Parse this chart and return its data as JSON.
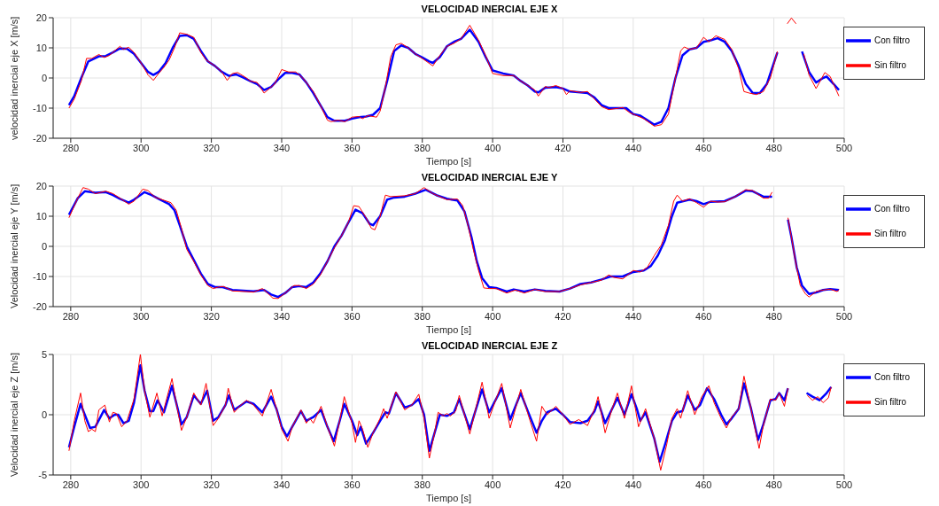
{
  "chart_data": [
    {
      "type": "line",
      "title": "VELOCIDAD INERCIAL EJE X",
      "xlabel": "Tiempo [s]",
      "ylabel": "velocidad inercial eje X [m/s]",
      "xlim": [
        275,
        500
      ],
      "xticks": [
        280,
        300,
        320,
        340,
        360,
        380,
        400,
        420,
        440,
        460,
        480,
        500
      ],
      "ylim": [
        -20,
        20
      ],
      "yticks": [
        -20,
        -10,
        0,
        10,
        20
      ],
      "grid": true,
      "legend": "top right",
      "series": [
        {
          "name": "Con filtro",
          "color": "#0000ff",
          "x": [
            279.5,
            281,
            283,
            285,
            288,
            290,
            292,
            294,
            296,
            298,
            300,
            302,
            303.5,
            305,
            307,
            309,
            311,
            313,
            315,
            317,
            319,
            321,
            323,
            325,
            327,
            329,
            331,
            333,
            335,
            337,
            339,
            341,
            343,
            345,
            347,
            349,
            351,
            353,
            355,
            358,
            360,
            362,
            364,
            366,
            368,
            370,
            372,
            374,
            376,
            378,
            380,
            382,
            383,
            385,
            387,
            389,
            391,
            393.5,
            396,
            398,
            400,
            403,
            406,
            408,
            410,
            412,
            413,
            415,
            418,
            420,
            422,
            425,
            427,
            429,
            431,
            433,
            436,
            438,
            440,
            442,
            444,
            446,
            448,
            450,
            452,
            454,
            456,
            458,
            460,
            462,
            464,
            466,
            468,
            470,
            472,
            474,
            476,
            478,
            480,
            481,
            484,
            488,
            490,
            492,
            494,
            495,
            497,
            498.5
          ],
          "values": [
            -9,
            -6,
            0,
            5.5,
            7.2,
            7.3,
            8.5,
            9.8,
            9.7,
            8,
            5,
            2,
            1,
            2,
            5,
            10,
            14,
            14.2,
            13,
            9,
            5.5,
            4,
            2,
            0.7,
            1.2,
            0.2,
            -1,
            -2,
            -4,
            -3,
            -0.5,
            1.7,
            1.7,
            1.2,
            -1.5,
            -5,
            -9,
            -13,
            -14.2,
            -14.2,
            -13.5,
            -13,
            -12.8,
            -12.2,
            -10,
            -1,
            9,
            10.8,
            10,
            8,
            6.8,
            5.5,
            5,
            7,
            10.5,
            12,
            13,
            16,
            12,
            7,
            2.5,
            1.5,
            0.8,
            -1,
            -2.5,
            -4.5,
            -4.8,
            -3.2,
            -3,
            -3.5,
            -4.5,
            -4.8,
            -5,
            -6.5,
            -9,
            -10,
            -10,
            -10,
            -12,
            -12.5,
            -14,
            -15.5,
            -14.5,
            -10,
            0,
            7.5,
            9.5,
            10,
            12,
            12.5,
            13.2,
            12,
            9,
            4,
            -2,
            -5,
            -5,
            -2,
            5,
            8.5,
            null,
            8.8,
            2,
            -1.5,
            0,
            0.5,
            -2,
            -4
          ]
        },
        {
          "name": "Sin filtro",
          "color": "#ff0000",
          "x": [
            279.5,
            281,
            283,
            284.5,
            286,
            288,
            289.5,
            291,
            294,
            295,
            296.5,
            298,
            300,
            302,
            303.5,
            305,
            306.5,
            308,
            309.5,
            311,
            313,
            315,
            317,
            318.5,
            321,
            323,
            324.5,
            326,
            327.5,
            330,
            331,
            333,
            335,
            336.5,
            338,
            340,
            342,
            344,
            346,
            349,
            351,
            353,
            354,
            356,
            358,
            360,
            362,
            363,
            364.5,
            367,
            368,
            369.5,
            371,
            372.5,
            374,
            376,
            378,
            380,
            383,
            385,
            387,
            389,
            391,
            393.5,
            396,
            398,
            400,
            403,
            406,
            408,
            410,
            412,
            413,
            415,
            416,
            418,
            420,
            421,
            422,
            425,
            427,
            429,
            431,
            433,
            436,
            437,
            439,
            441,
            443,
            446,
            448,
            450,
            452,
            453.5,
            454.5,
            456,
            458,
            460,
            461.5,
            463.5,
            466,
            468,
            470,
            471.5,
            473,
            475,
            477,
            479,
            481,
            482.5,
            483.8,
            485,
            486.3,
            487.5,
            488.5,
            490,
            492,
            494.5,
            496,
            498.5
          ],
          "values": [
            -10,
            -7,
            -1,
            6.5,
            6.5,
            7.8,
            6.8,
            7.5,
            10.5,
            9.5,
            10.2,
            8.5,
            5,
            1,
            -0.8,
            1.5,
            3.5,
            6,
            10,
            15,
            14.5,
            13.5,
            8.5,
            6,
            4,
            2,
            -0.8,
            1.5,
            1.8,
            0,
            -1,
            -1.5,
            -5,
            -3.5,
            -2,
            2.8,
            2,
            2,
            0,
            -4.5,
            -9,
            -14,
            -14.5,
            -14,
            -14.5,
            -13,
            -12.8,
            -13.5,
            -12.5,
            -13,
            -11,
            -3,
            7,
            11,
            11.5,
            10,
            8,
            6.5,
            4,
            7.5,
            10.5,
            11.5,
            13,
            17.5,
            12.5,
            7.5,
            1.5,
            0.8,
            0.8,
            -1,
            -2.5,
            -4,
            -6,
            -2.8,
            -3.2,
            -2.5,
            -3.5,
            -5.5,
            -4.2,
            -4.8,
            -4.5,
            -7,
            -9.5,
            -10.5,
            -10,
            -9.8,
            -11.5,
            -12.5,
            -13.5,
            -16,
            -15.5,
            -12,
            0,
            9,
            10.3,
            9.5,
            10,
            13.5,
            12,
            14,
            12.8,
            9.5,
            3,
            -4.5,
            -5,
            -5.5,
            -4.5,
            0,
            8.8,
            null,
            18,
            19.9,
            18,
            null,
            8,
            1,
            -3.5,
            1.8,
            0.5,
            -6
          ]
        }
      ]
    },
    {
      "type": "line",
      "title": "VELOCIDAD INERCIAL EJE Y",
      "xlabel": "Tiempo [s]",
      "ylabel": "Velocidad inercial eje Y [m/s]",
      "xlim": [
        275,
        500
      ],
      "xticks": [
        280,
        300,
        320,
        340,
        360,
        380,
        400,
        420,
        440,
        460,
        480,
        500
      ],
      "ylim": [
        -20,
        20
      ],
      "yticks": [
        -20,
        -10,
        0,
        10,
        20
      ],
      "grid": true,
      "legend": "top right",
      "series": [
        {
          "name": "Con filtro",
          "color": "#0000ff",
          "x": [
            279.5,
            282,
            284,
            287,
            290,
            292,
            294,
            296.5,
            298,
            301,
            303,
            305,
            308,
            309.5,
            311,
            313,
            315,
            317,
            319,
            321,
            323,
            326,
            330,
            332,
            335,
            337,
            339,
            341,
            343,
            345,
            347,
            349,
            351,
            353,
            355,
            357,
            359,
            361,
            363,
            365,
            366,
            368,
            370,
            372,
            375,
            378,
            381,
            384,
            387,
            390,
            392,
            394,
            395.5,
            397,
            399,
            401,
            404,
            406,
            409,
            412,
            415,
            419,
            422,
            425,
            428,
            431,
            433.5,
            437,
            440,
            443,
            445,
            447,
            449,
            451,
            452.5,
            456,
            458,
            460,
            462,
            466,
            469,
            472,
            474,
            477,
            479.5,
            482,
            484,
            485,
            486.5,
            488,
            490,
            492,
            494,
            496,
            498.5
          ],
          "values": [
            10.5,
            16,
            18.3,
            17.8,
            18,
            17,
            15.8,
            14.5,
            15.5,
            18,
            17,
            15.8,
            14,
            12,
            7,
            0,
            -4.5,
            -9,
            -12.5,
            -13.5,
            -13.5,
            -14.5,
            -14.8,
            -14.9,
            -14.5,
            -16,
            -16.8,
            -15.5,
            -13.5,
            -13.2,
            -13.5,
            -12,
            -9,
            -5,
            0,
            3.5,
            8,
            12.2,
            11,
            7.5,
            7,
            10,
            15.5,
            16.2,
            16.5,
            17.5,
            18.8,
            17,
            15.8,
            15.2,
            11.6,
            3,
            -5,
            -10.5,
            -13.5,
            -13.8,
            -15,
            -14.3,
            -15,
            -14.3,
            -14.8,
            -15,
            -14,
            -12.5,
            -12,
            -11,
            -10,
            -10,
            -8.5,
            -8,
            -6.5,
            -3,
            2,
            10,
            14.5,
            15.5,
            15,
            14,
            14.8,
            15,
            16.5,
            18.5,
            18.3,
            16.5,
            16.5,
            null,
            8.9,
            3,
            -7,
            -13,
            -15.8,
            -15.3,
            -14.5,
            -14.2,
            -14.5
          ]
        },
        {
          "name": "Sin filtro",
          "color": "#ff0000",
          "x": [
            279.5,
            282,
            283.5,
            285,
            287,
            290,
            292,
            294,
            296.5,
            298,
            300.5,
            302,
            304,
            306,
            308.5,
            310,
            311.5,
            313,
            315,
            317,
            319,
            320.5,
            322,
            323.5,
            326,
            330,
            332,
            334.5,
            336,
            337.5,
            339,
            341,
            343.5,
            345,
            347,
            349,
            351,
            353,
            355,
            357,
            359,
            360.5,
            362,
            364,
            365.5,
            366.5,
            368,
            369.5,
            371,
            375,
            378,
            380.5,
            383,
            387,
            390,
            391.5,
            393,
            394.5,
            396,
            397.5,
            399,
            401,
            404,
            406.5,
            409,
            412,
            415,
            419,
            422,
            425,
            428,
            431,
            433,
            434.5,
            437,
            440,
            442,
            444,
            446,
            448,
            450,
            451.5,
            452.5,
            454,
            456,
            458,
            460,
            462,
            464,
            466,
            469,
            472,
            474,
            477,
            478.5,
            479.5,
            482,
            484,
            485,
            486,
            487.5,
            489,
            490,
            492,
            494,
            496,
            498,
            498.5
          ],
          "values": [
            9.5,
            16,
            19.5,
            19,
            17.5,
            18.3,
            17.5,
            16,
            14,
            15,
            19,
            18.5,
            16.3,
            15.5,
            14.5,
            12,
            6,
            -1,
            -5,
            -9.5,
            -13,
            -14,
            -13.5,
            -13.3,
            -14.8,
            -15,
            -15.2,
            -14,
            -15.5,
            -17.2,
            -17.3,
            -15.5,
            -13,
            -13,
            -14,
            -12.5,
            -9.5,
            -5,
            -0.5,
            3.5,
            8,
            13.5,
            13.2,
            9.5,
            6,
            5.5,
            10,
            17,
            16.5,
            16.8,
            17.5,
            19.5,
            17.5,
            15.5,
            15.7,
            13.5,
            7,
            -1,
            -8,
            -13.8,
            -14,
            -14,
            -15.5,
            -14.5,
            -15.5,
            -14.3,
            -15,
            -15,
            -14,
            -12.8,
            -12,
            -11.2,
            -9.5,
            -10.3,
            -10.8,
            -8,
            -8.5,
            -7,
            -3,
            0.5,
            7,
            15,
            17,
            15,
            15.8,
            14.5,
            13,
            15,
            14.7,
            14.8,
            16.5,
            18.8,
            18.5,
            16,
            16,
            18,
            null,
            9.5,
            3,
            -4,
            -13,
            -15.8,
            -16.8,
            -15,
            -14.5,
            -14.2,
            -15,
            -14.3
          ]
        }
      ]
    },
    {
      "type": "line",
      "title": "VELOCIDAD INERCIAL EJE Z",
      "xlabel": "Tiempo [s]",
      "ylabel": "Velocidad inercial eje Z [m/s]",
      "xlim": [
        275,
        500
      ],
      "xticks": [
        280,
        300,
        320,
        340,
        360,
        380,
        400,
        420,
        440,
        460,
        480,
        500
      ],
      "ylim": [
        -5,
        5
      ],
      "yticks": [
        -5,
        0,
        5
      ],
      "grid": true,
      "legend": "top right",
      "series": [
        {
          "name": "Con filtro",
          "color": "#0000ff",
          "x": [
            279.5,
            281,
            282.8,
            284,
            285.5,
            287,
            289.5,
            291,
            292.5,
            293.5,
            295,
            296.5,
            298,
            299.8,
            301,
            302.5,
            303.5,
            304.7,
            306.5,
            308.8,
            310,
            311.5,
            313,
            315,
            317,
            318.8,
            320.5,
            322,
            324,
            325,
            326.5,
            328,
            330,
            332,
            334.5,
            337,
            338.5,
            340,
            341.5,
            343,
            345.5,
            347,
            349,
            351.2,
            353,
            354.8,
            356.5,
            357.8,
            360,
            361.5,
            362.5,
            364,
            366,
            368,
            369.5,
            370.5,
            372.5,
            375,
            377,
            379,
            380.5,
            382,
            383.5,
            385,
            387,
            389,
            390.5,
            393.5,
            397,
            399,
            402.6,
            405,
            408,
            410,
            412.5,
            414,
            415.5,
            418,
            420,
            422,
            425,
            427,
            429,
            430,
            432,
            434,
            435.5,
            437.5,
            439.5,
            441,
            442,
            443.5,
            446,
            447.5,
            449,
            451,
            452.5,
            454,
            455.5,
            457.5,
            459,
            461,
            463,
            465,
            466.5,
            468,
            470,
            471.5,
            473.5,
            475.5,
            477,
            479,
            480.5,
            481.5,
            483,
            484,
            486,
            489.3,
            491,
            493,
            495,
            496.3
          ],
          "values": [
            -2.7,
            -1,
            0.9,
            0,
            -1.1,
            -1,
            0.4,
            -0.3,
            0,
            0,
            -0.7,
            -0.5,
            1,
            4.1,
            2,
            0.3,
            0.3,
            1.2,
            0.2,
            2.4,
            1,
            -0.8,
            -0.2,
            1.6,
            0.9,
            2,
            -0.5,
            -0.2,
            0.8,
            1.6,
            0.4,
            0.7,
            1.1,
            0.9,
            0.2,
            1.5,
            0.5,
            -1,
            -1.8,
            -1,
            0.3,
            -0.5,
            -0.2,
            0.4,
            -1,
            -2.2,
            -0.5,
            0.9,
            -0.5,
            -1.7,
            -1,
            -2.4,
            -1.5,
            -0.5,
            0.2,
            0.1,
            1.8,
            0.6,
            0.8,
            1.3,
            0,
            -3,
            -1.5,
            0,
            -0.1,
            0.2,
            1.3,
            -1.2,
            2.1,
            0.2,
            2.2,
            -0.4,
            1.8,
            0.3,
            -1.5,
            -0.5,
            0.2,
            0.5,
            0,
            -0.6,
            -0.7,
            -0.5,
            0.3,
            1.1,
            -0.7,
            0.5,
            1.4,
            0,
            1.7,
            0.5,
            -0.5,
            0.2,
            -2,
            -3.9,
            -2.5,
            -0.5,
            0.2,
            0.3,
            1.6,
            0.4,
            0.8,
            2.2,
            1.3,
            0,
            -0.8,
            -0.3,
            0.5,
            2.6,
            0.5,
            -2.1,
            -0.8,
            1.2,
            1.3,
            1.8,
            1.2,
            2.2,
            null,
            1.8,
            1.5,
            1.2,
            1.8,
            2.3
          ]
        },
        {
          "name": "Sin filtro",
          "color": "#ff0000",
          "x": [
            279.5,
            281,
            282.8,
            284,
            285,
            286,
            287,
            288,
            289.7,
            291,
            292,
            293,
            294.5,
            296,
            298,
            299.8,
            301,
            302.5,
            304.5,
            306,
            308.8,
            310,
            311.5,
            313,
            315,
            317,
            318.5,
            320.5,
            322,
            324,
            324.8,
            326.5,
            328,
            330,
            332,
            334.5,
            337,
            338.5,
            340,
            341.8,
            343,
            345.5,
            347,
            348,
            349,
            351.2,
            353,
            355,
            356.5,
            357.8,
            360,
            361,
            362,
            363,
            364.5,
            366,
            368,
            369,
            370,
            372.5,
            375,
            377,
            379,
            380.5,
            382,
            383.5,
            384.5,
            386,
            387,
            388,
            389.5,
            390.5,
            393.5,
            397,
            399,
            402.6,
            405,
            408,
            410,
            412.5,
            414,
            415.5,
            418,
            420,
            422,
            424.5,
            427,
            429,
            430,
            432,
            434,
            435.5,
            437.5,
            439.5,
            441.5,
            443.5,
            446,
            447.8,
            449.5,
            451,
            452.5,
            453.5,
            455.5,
            457.5,
            459.5,
            461.5,
            463,
            465,
            466.5,
            468,
            470,
            471.5,
            473.5,
            475.8,
            477,
            479,
            480.5,
            481.5,
            483,
            484,
            486,
            489.5,
            491,
            492.5,
            494,
            495.5,
            496.3
          ],
          "values": [
            -3,
            -0.5,
            1.8,
            -0.5,
            -1.4,
            -1.2,
            -1.4,
            0.4,
            0.8,
            -0.6,
            0.2,
            0.1,
            -1,
            -0.5,
            1.3,
            5,
            2,
            -0.2,
            1.8,
            -0.1,
            3,
            1,
            -1.3,
            -0.2,
            1.8,
            0.8,
            2.6,
            -0.9,
            -0.3,
            0.8,
            2.2,
            0.2,
            0.7,
            1.2,
            0.8,
            -0.1,
            2.1,
            0.5,
            -1.2,
            -2.2,
            -1,
            0.4,
            -0.7,
            -0.3,
            -0.7,
            0.7,
            -1,
            -2.6,
            -0.5,
            1.5,
            -0.7,
            -2.3,
            -0.5,
            -1.2,
            -2.7,
            -1.5,
            -0.3,
            0.5,
            -0.3,
            1.9,
            0.4,
            0.8,
            1.7,
            -0.3,
            -3.6,
            -1.5,
            0.2,
            -0.1,
            0.1,
            -0.1,
            0.3,
            1.6,
            -1.6,
            2.7,
            -0.3,
            2.6,
            -1.1,
            2.1,
            0.1,
            -2.2,
            0.7,
            0,
            0.7,
            0,
            -0.8,
            -0.4,
            -0.9,
            0.5,
            1.5,
            -1.5,
            0.5,
            1.8,
            -0.3,
            2.4,
            -1,
            0.5,
            -2,
            -4.6,
            -2.5,
            -0.3,
            0.5,
            -0.3,
            2,
            0,
            1.5,
            2.4,
            1,
            -0.3,
            -1.1,
            -0.2,
            0.5,
            3.2,
            0.5,
            -2.8,
            -0.9,
            1.3,
            1.2,
            1.8,
            0.7,
            2.2,
            null,
            1.6,
            1.2,
            1.5,
            1,
            1.4,
            2.3
          ]
        }
      ]
    }
  ]
}
